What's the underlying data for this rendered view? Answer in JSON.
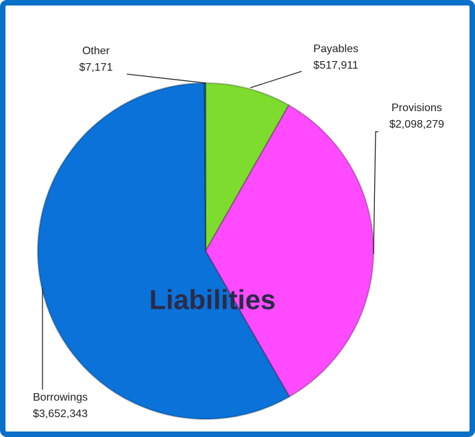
{
  "chart_data": {
    "type": "pie",
    "title": "Liabilities",
    "categories": [
      "Payables",
      "Provisions",
      "Borrowings",
      "Other"
    ],
    "values": [
      517911,
      2098279,
      3652343,
      7171
    ],
    "value_labels": [
      "$517,911",
      "$2,098,279",
      "$3,652,343",
      "$7,171"
    ],
    "colors": [
      "#7ddc2e",
      "#ff4aff",
      "#0a72d8",
      "#1c5fa8"
    ]
  }
}
